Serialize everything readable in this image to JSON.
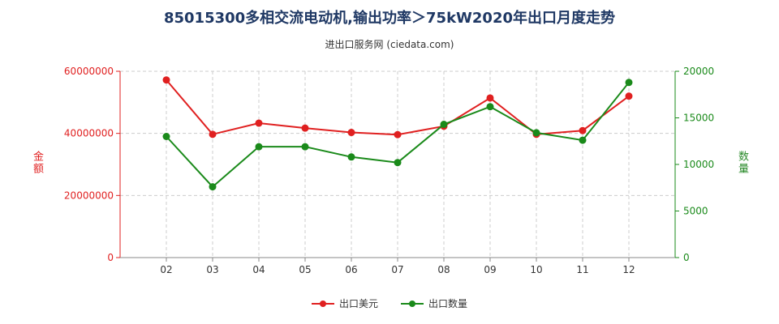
{
  "header": {
    "title": "85015300多相交流电动机,输出功率＞75kW2020年出口月度走势",
    "subtitle": "进出口服务网 (ciedata.com)"
  },
  "colors": {
    "left": "#e02020",
    "right": "#1a8a1a",
    "grid": "#cccccc"
  },
  "chart_data": {
    "type": "line",
    "categories": [
      "02",
      "03",
      "04",
      "05",
      "06",
      "07",
      "08",
      "09",
      "10",
      "11",
      "12"
    ],
    "ylabel_left": "金额",
    "ylabel_right": "数量",
    "ylim_left": [
      0,
      60000000
    ],
    "ylim_right": [
      0,
      20000
    ],
    "yticks_left": [
      "0",
      "20000000",
      "40000000",
      "60000000"
    ],
    "yticks_right": [
      "0",
      "5000",
      "10000",
      "15000",
      "20000"
    ],
    "series": [
      {
        "name": "出口美元",
        "axis": "left",
        "values": [
          57200000,
          39700000,
          43300000,
          41700000,
          40300000,
          39600000,
          42300000,
          51400000,
          39700000,
          40900000,
          52000000
        ]
      },
      {
        "name": "出口数量",
        "axis": "right",
        "values": [
          13000,
          7600,
          11900,
          11900,
          10800,
          10200,
          14300,
          16200,
          13400,
          12600,
          18800
        ]
      }
    ],
    "grid": true,
    "legend": "bottom"
  }
}
